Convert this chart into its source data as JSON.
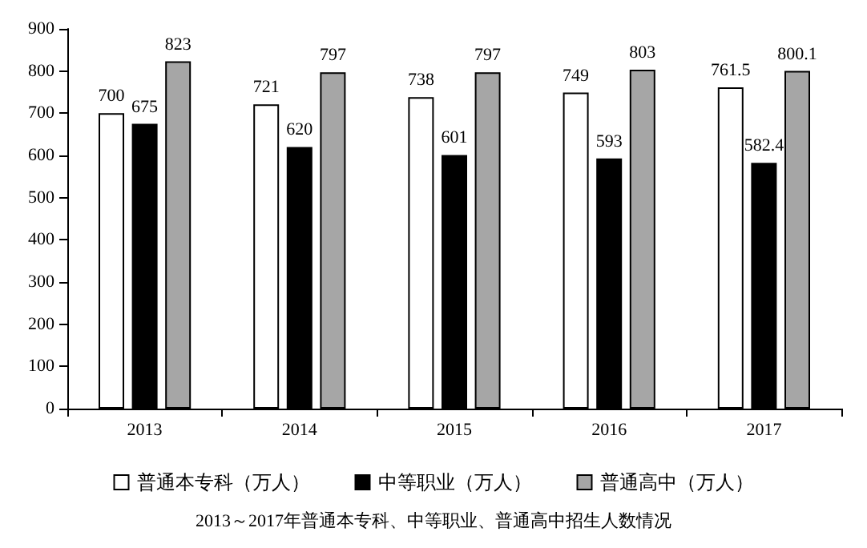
{
  "chart_data": {
    "type": "bar",
    "title": "2013～2017年普通本专科、中等职业、普通高中招生人数情况",
    "categories": [
      "2013",
      "2014",
      "2015",
      "2016",
      "2017"
    ],
    "series": [
      {
        "name": "普通本专科（万人）",
        "color": "#ffffff",
        "values": [
          700,
          721,
          738,
          749,
          761.5
        ]
      },
      {
        "name": "中等职业（万人）",
        "color": "#000000",
        "values": [
          675,
          620,
          601,
          593,
          582.4
        ]
      },
      {
        "name": "普通高中（万人）",
        "color": "#a6a6a6",
        "values": [
          823,
          797,
          797,
          803,
          800.1
        ]
      }
    ],
    "ylim": [
      0,
      900
    ],
    "yticks": [
      0,
      100,
      200,
      300,
      400,
      500,
      600,
      700,
      800,
      900
    ],
    "grid": false,
    "legend": "bottom",
    "data_labels": true
  }
}
